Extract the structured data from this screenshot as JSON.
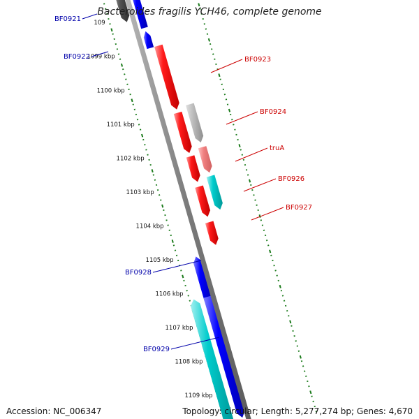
{
  "title": "Bacteroides fragilis YCH46, complete genome",
  "footer": {
    "accession": "Accession: NC_006347",
    "topology": "Topology: circular; Length: 5,277,274 bp; Genes: 4,670"
  },
  "colors": {
    "backbone": "#8a8a8a",
    "tick": "#1a7a1a",
    "forward_label": "#cc0000",
    "reverse_label": "#0000aa",
    "red": "#ff0000",
    "blue": "#0000ff",
    "cyan": "#00c8c8",
    "gray": "#b4b4b4",
    "pink": "#f08080"
  },
  "tick_labels": [
    "109",
    "1099 kbp",
    "1100 kbp",
    "1101 kbp",
    "1102 kbp",
    "1103 kbp",
    "1104 kbp",
    "1105 kbp",
    "1106 kbp",
    "1107 kbp",
    "1108 kbp",
    "1109 kbp"
  ],
  "gene_labels": [
    {
      "text": "BF0921",
      "side": "left",
      "color": "#0000aa"
    },
    {
      "text": "BF0922",
      "side": "left",
      "color": "#0000aa"
    },
    {
      "text": "BF0923",
      "side": "right",
      "color": "#cc0000"
    },
    {
      "text": "BF0924",
      "side": "right",
      "color": "#cc0000"
    },
    {
      "text": "truA",
      "side": "right",
      "color": "#cc0000"
    },
    {
      "text": "BF0926",
      "side": "right",
      "color": "#cc0000"
    },
    {
      "text": "BF0927",
      "side": "right",
      "color": "#cc0000"
    },
    {
      "text": "BF0928",
      "side": "left",
      "color": "#0000aa"
    },
    {
      "text": "BF0929",
      "side": "left",
      "color": "#0000aa"
    }
  ]
}
